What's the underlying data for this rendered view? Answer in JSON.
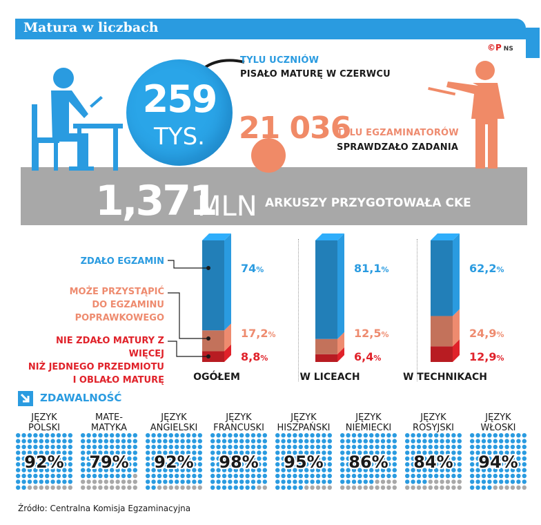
{
  "header": {
    "title": "Matura w liczbach",
    "credit_mark": "©P",
    "credit_author": "NS"
  },
  "students": {
    "number": "259",
    "unit": "TYS.",
    "line1": "TYLU UCZNIÓW",
    "line2": "PISAŁO MATURĘ W CZERWCU"
  },
  "examiners": {
    "number": "21 036",
    "line1": "TYLU EGZAMINATORÓW",
    "line2": "SPRAWDZAŁO ZADANIA"
  },
  "sheets": {
    "number": "1,371",
    "unit": "MLN",
    "text": "ARKUSZY PRZYGOTOWAŁA CKE"
  },
  "colors": {
    "blue": "#2a9be0",
    "salmon": "#ee8b6f",
    "red": "#e0222a",
    "gray": "#a8a8a8"
  },
  "chart_data": [
    {
      "type": "bar",
      "stacked": true,
      "categories": [
        "OGÓŁEM",
        "W LICEACH",
        "W TECHNIKACH"
      ],
      "series": [
        {
          "name": "ZDAŁO EGZAMIN",
          "color": "#2a9be0",
          "values": [
            74,
            81.1,
            62.2
          ],
          "labels": [
            "74",
            "81,1",
            "62,2"
          ]
        },
        {
          "name": "MOŻE PRZYSTĄPIĆ DO EGZAMINU POPRAWKOWEGO",
          "color": "#ee8b6f",
          "values": [
            17.2,
            12.5,
            24.9
          ],
          "labels": [
            "17,2",
            "12,5",
            "24,9"
          ]
        },
        {
          "name": "NIE ZDAŁO MATURY Z WIĘCEJ NIŻ JEDNEGO PRZEDMIOTU I OBLAŁO MATURĘ",
          "color": "#e0222a",
          "values": [
            8.8,
            6.4,
            12.9
          ],
          "labels": [
            "8,8",
            "6,4",
            "12,9"
          ]
        }
      ],
      "legend_lines": [
        [
          "ZDAŁO EGZAMIN"
        ],
        [
          "MOŻE PRZYSTĄPIĆ",
          "DO EGZAMINU",
          "POPRAWKOWEGO"
        ],
        [
          "NIE ZDAŁO MATURY Z WIĘCEJ",
          "NIŻ JEDNEGO PRZEDMIOTU",
          "I OBLAŁO MATURĘ"
        ]
      ],
      "unit": "%",
      "legend_position": "left"
    },
    {
      "type": "waffle",
      "title": "ZDAWALNOŚĆ",
      "categories": [
        "JĘZYK POLSKI",
        "MATEMATYKA",
        "JĘZYK ANGIELSKI",
        "JĘZYK FRANCUSKI",
        "JĘZYK HISZPAŃSKI",
        "JĘZYK NIEMIECKI",
        "JĘZYK ROSYJSKI",
        "JĘZYK WŁOSKI"
      ],
      "label_lines": [
        [
          "JĘZYK",
          "POLSKI"
        ],
        [
          "MATE-",
          "MATYKA"
        ],
        [
          "JĘZYK",
          "ANGIELSKI"
        ],
        [
          "JĘZYK",
          "FRANCUSKI"
        ],
        [
          "JĘZYK",
          "HISZPAŃSKI"
        ],
        [
          "JĘZYK",
          "NIEMIECKI"
        ],
        [
          "JĘZYK",
          "ROSYJSKI"
        ],
        [
          "JĘZYK",
          "WŁOSKI"
        ]
      ],
      "values": [
        92,
        79,
        92,
        98,
        95,
        86,
        84,
        94
      ],
      "labels": [
        "92%",
        "79%",
        "92%",
        "98%",
        "95%",
        "86%",
        "84%",
        "94%"
      ],
      "dot_color": "#2a9be0",
      "rest_color": "#a8a8a8"
    }
  ],
  "source": "Źródło: Centralna Komisja Egzaminacyjna"
}
